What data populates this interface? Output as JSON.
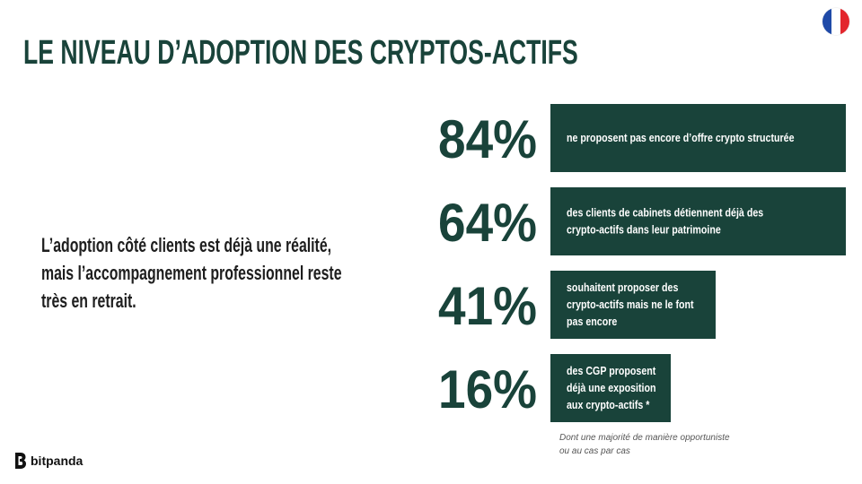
{
  "header": {
    "title": "LE NIVEAU D’ADOPTION DES CRYPTOS-ACTIFS",
    "flag": {
      "name": "france-flag-icon",
      "colors": [
        "#1f4aa8",
        "#ffffff",
        "#e3262d"
      ]
    }
  },
  "main": {
    "subtitle": "L’adoption côté clients est déjà une réalité, mais l’accompagnement professionnel reste très en retrait.",
    "footnote": "Dont une majorité de manière opportuniste ou au cas par cas"
  },
  "brand": {
    "logo_text": "bitpanda",
    "icon": "bitpanda-logo-icon"
  },
  "colors": {
    "accent": "#19433a",
    "bar_text": "#ffffff",
    "value_text": "#19433a"
  },
  "chart_data": {
    "type": "bar",
    "orientation": "horizontal",
    "grid": false,
    "title": "",
    "xlabel": "",
    "ylabel": "",
    "unit": "%",
    "xlim": [
      0,
      84
    ],
    "bars": [
      {
        "value_label": "84%",
        "value": 84,
        "description": [
          "ne proposent pas encore d’offre crypto structurée"
        ]
      },
      {
        "value_label": "64%",
        "value": 64,
        "description": [
          "des clients de cabinets détiennent déjà des",
          "crypto-actifs dans leur patrimoine"
        ]
      },
      {
        "value_label": "41%",
        "value": 41,
        "description": [
          "souhaitent proposer des",
          "crypto-actifs mais ne le font",
          "pas encore"
        ]
      },
      {
        "value_label": "16%",
        "value": 16,
        "description": [
          "des CGP proposent",
          "déjà une exposition",
          "aux crypto-actifs *"
        ]
      }
    ]
  }
}
